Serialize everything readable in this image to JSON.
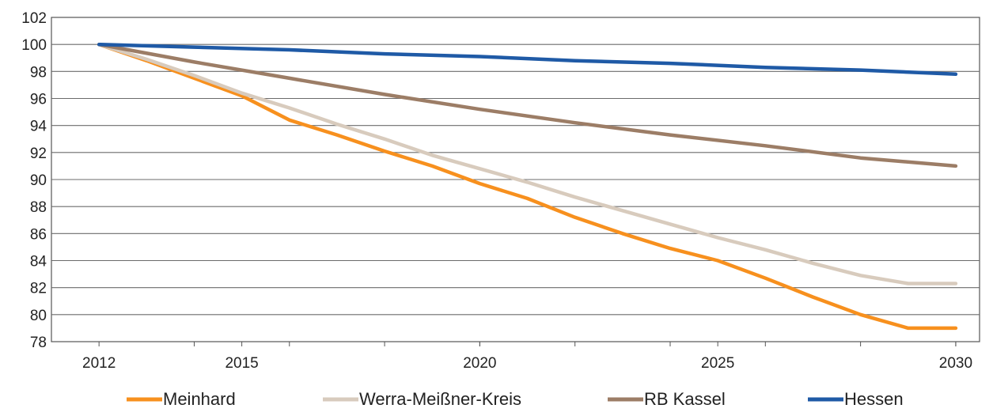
{
  "chart_data": {
    "type": "line",
    "title": "",
    "xlabel": "",
    "ylabel": "",
    "xlim": [
      2012,
      2030
    ],
    "ylim": [
      78,
      102
    ],
    "y_ticks": [
      "78",
      "80",
      "82",
      "84",
      "86",
      "88",
      "90",
      "92",
      "94",
      "96",
      "98",
      "100",
      "102"
    ],
    "x_tick_labels": [
      "2012",
      "2015",
      "2020",
      "2025",
      "2030"
    ],
    "grid": true,
    "legend_position": "bottom",
    "series": [
      {
        "name": "Meinhard",
        "color": "#f7901e",
        "x": [
          2012,
          2013,
          2014,
          2015,
          2016,
          2017,
          2018,
          2019,
          2020,
          2021,
          2022,
          2023,
          2024,
          2025,
          2026,
          2027,
          2028,
          2029,
          2030
        ],
        "values": [
          100,
          98.8,
          97.5,
          96.2,
          94.4,
          93.3,
          92.1,
          91.0,
          89.7,
          88.6,
          87.2,
          86.0,
          84.9,
          84.0,
          82.7,
          81.3,
          80.0,
          79.0,
          79.0
        ]
      },
      {
        "name": "Werra-Meißner-Kreis",
        "color": "#d8cbbd",
        "x": [
          2012,
          2013,
          2014,
          2015,
          2016,
          2017,
          2018,
          2019,
          2020,
          2021,
          2022,
          2023,
          2024,
          2025,
          2026,
          2027,
          2028,
          2029,
          2030
        ],
        "values": [
          100,
          98.9,
          97.7,
          96.4,
          95.3,
          94.1,
          93.0,
          91.8,
          90.8,
          89.8,
          88.7,
          87.7,
          86.7,
          85.7,
          84.8,
          83.8,
          82.9,
          82.3,
          82.3
        ]
      },
      {
        "name": "RB Kassel",
        "color": "#9c7d66",
        "x": [
          2012,
          2014,
          2016,
          2018,
          2020,
          2022,
          2024,
          2026,
          2028,
          2030
        ],
        "values": [
          100,
          98.7,
          97.5,
          96.3,
          95.2,
          94.2,
          93.3,
          92.5,
          91.6,
          91.0
        ]
      },
      {
        "name": "Hessen",
        "color": "#1f5aa6",
        "x": [
          2012,
          2014,
          2016,
          2018,
          2020,
          2022,
          2024,
          2026,
          2028,
          2030
        ],
        "values": [
          100,
          99.8,
          99.6,
          99.3,
          99.1,
          98.8,
          98.6,
          98.3,
          98.1,
          97.8
        ]
      }
    ]
  }
}
